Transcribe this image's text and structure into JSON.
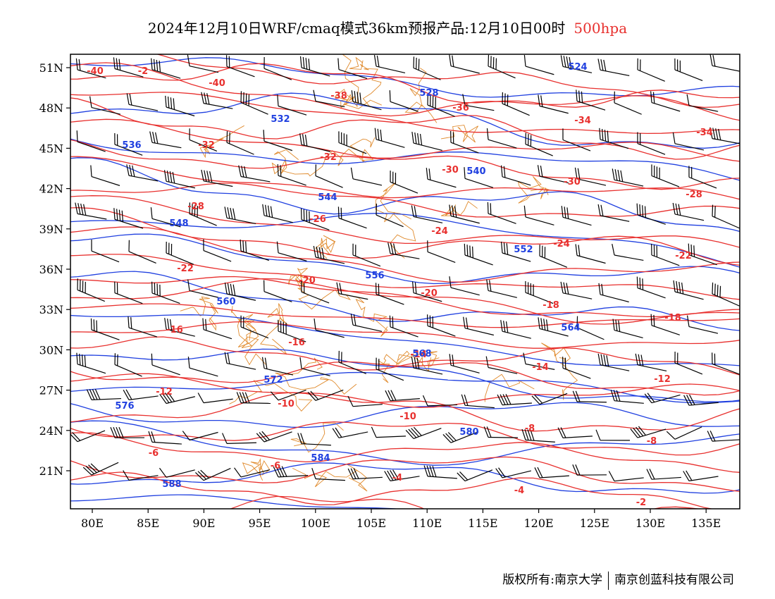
{
  "title": {
    "main": "2024年12月10日WRF/cmaq模式36km预报产品:12月10日00时",
    "level": "500hpa"
  },
  "colors": {
    "temperature": "#e8302e",
    "height": "#2040e0",
    "border": "#e08a2c",
    "barb": "#000000"
  },
  "axes": {
    "lon_labels": [
      "80E",
      "85E",
      "90E",
      "95E",
      "100E",
      "105E",
      "110E",
      "115E",
      "120E",
      "125E",
      "130E",
      "135E"
    ],
    "lat_labels": [
      "51N",
      "48N",
      "45N",
      "42N",
      "39N",
      "36N",
      "33N",
      "30N",
      "27N",
      "24N",
      "21N"
    ]
  },
  "temperature_labels": [
    "-40",
    "-40",
    "-38",
    "-36",
    "-34",
    "-34",
    "-32",
    "-32",
    "-30",
    "-30",
    "-28",
    "-28",
    "-26",
    "-24",
    "-24",
    "-22",
    "-22",
    "-20",
    "-20",
    "-18",
    "-18",
    "-16",
    "-16",
    "-14",
    "-14",
    "-12",
    "-12",
    "-10",
    "-10",
    "-8",
    "-8",
    "-6",
    "-6",
    "-4",
    "-4",
    "-2",
    "-2"
  ],
  "height_labels": [
    "524",
    "528",
    "532",
    "536",
    "540",
    "544",
    "548",
    "552",
    "556",
    "560",
    "564",
    "568",
    "572",
    "576",
    "580",
    "584",
    "588"
  ],
  "footer": {
    "left": "版权所有:南京大学",
    "right": "南京创蓝科技有限公司"
  }
}
